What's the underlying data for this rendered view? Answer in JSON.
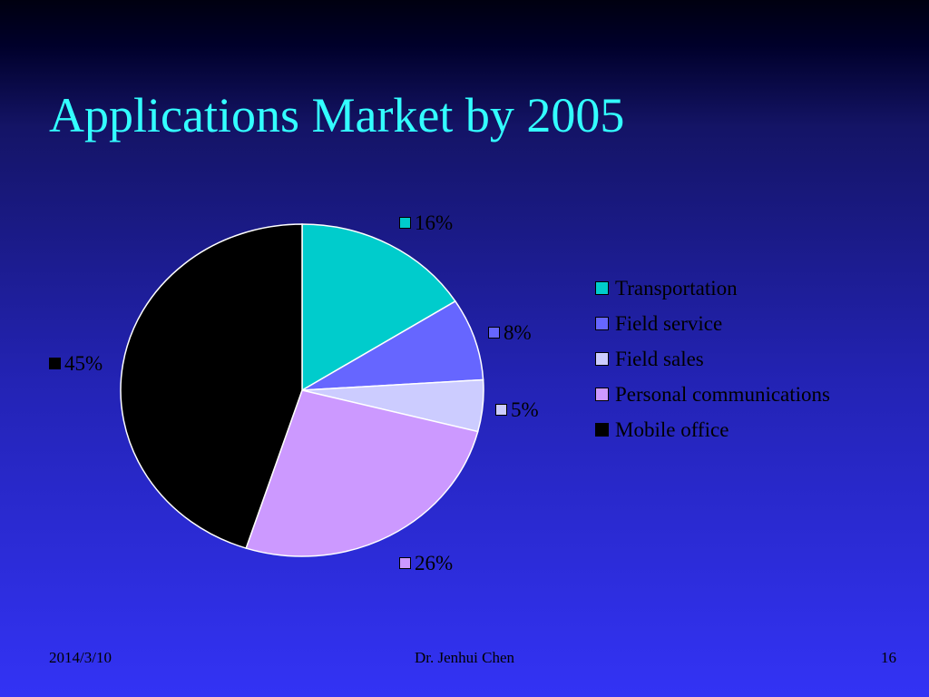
{
  "slide": {
    "title": "Applications Market by 2005"
  },
  "footer": {
    "date": "2014/3/10",
    "author": "Dr. Jenhui Chen",
    "page": "16"
  },
  "colors": {
    "title": "#33ffff",
    "background_top": "#000010",
    "background_bottom": "#3333f5"
  },
  "chart_data": {
    "type": "pie",
    "title": "",
    "categories": [
      "Transportation",
      "Field service",
      "Field sales",
      "Personal communications",
      "Mobile office"
    ],
    "values": [
      16,
      8,
      5,
      26,
      45
    ],
    "labels": [
      "16%",
      "8%",
      "5%",
      "26%",
      "45%"
    ],
    "colors": [
      "#00cccc",
      "#6666ff",
      "#ccccff",
      "#cc99ff",
      "#000000"
    ],
    "start_angle": "12 o'clock, clockwise",
    "legend_position": "right"
  }
}
